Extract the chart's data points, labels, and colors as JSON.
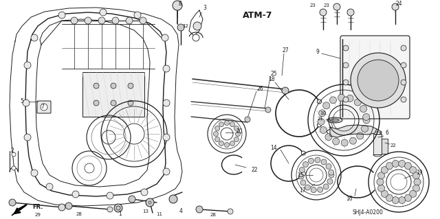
{
  "bg_color": "#ffffff",
  "line_color": "#1a1a1a",
  "fig_width": 6.4,
  "fig_height": 3.19,
  "dpi": 100,
  "diagram_label": "ATM-7",
  "catalog_number": "SHJ4-A0200"
}
